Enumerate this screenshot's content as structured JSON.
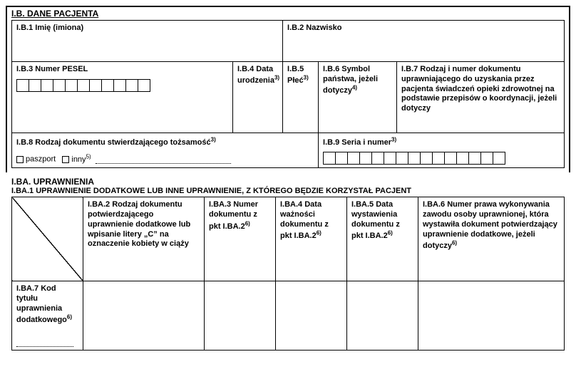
{
  "sectionIB": {
    "title": "I.B. DANE PACJENTA",
    "b1": {
      "label": "I.B.1 Imię (imiona)"
    },
    "b2": {
      "label": "I.B.2 Nazwisko"
    },
    "b3": {
      "label": "I.B.3 Numer PESEL",
      "boxCount": 11
    },
    "b4": {
      "label": "I.B.4 Data urodzenia",
      "sup": "3)"
    },
    "b5": {
      "label": "I.B.5 Płeć",
      "sup": "3)"
    },
    "b6": {
      "label": "I.B.6 Symbol państwa, jeżeli dotyczy",
      "sup": "4)"
    },
    "b7": {
      "label": "I.B.7 Rodzaj i numer dokumentu uprawniającego do uzyskania przez pacjenta świadczeń opieki zdrowotnej na podstawie przepisów o koordynacji, jeżeli dotyczy"
    },
    "b8": {
      "label": "I.B.8 Rodzaj dokumentu stwierdzającego tożsamość",
      "sup": "3)",
      "opt1": "paszport",
      "opt2": "inny",
      "opt2sup": "5)"
    },
    "b9": {
      "label": "I.B.9 Seria i numer",
      "sup": "3)",
      "boxCount": 15
    }
  },
  "sectionIBA": {
    "title": "I.BA. UPRAWNIENIA",
    "sub": "I.BA.1 UPRAWNIENIE DODATKOWE LUB INNE UPRAWNIENIE, Z KTÓREGO BĘDZIE KORZYSTAŁ PACJENT",
    "ba2": {
      "label": "I.BA.2 Rodzaj dokumentu potwierdzającego uprawnienie dodatkowe lub wpisanie litery „C” na oznaczenie kobiety w ciąży"
    },
    "ba3": {
      "label": "I.BA.3 Numer dokumentu z pkt I.BA.2",
      "sup": "6)"
    },
    "ba4": {
      "label": "I.BA.4 Data ważności dokumentu z pkt I.BA.2",
      "sup": "6)"
    },
    "ba5": {
      "label": "I.BA.5 Data wystawienia dokumentu z pkt I.BA.2",
      "sup": "6)"
    },
    "ba6": {
      "label": "I.BA.6 Numer prawa wykonywania zawodu osoby uprawnionej, która wystawiła dokument potwierdzający uprawnienie dodatkowe, jeżeli dotyczy",
      "sup": "6)"
    },
    "ba7": {
      "label": "I.BA.7 Kod tytułu uprawnienia dodatkowego",
      "sup": "6)"
    }
  }
}
